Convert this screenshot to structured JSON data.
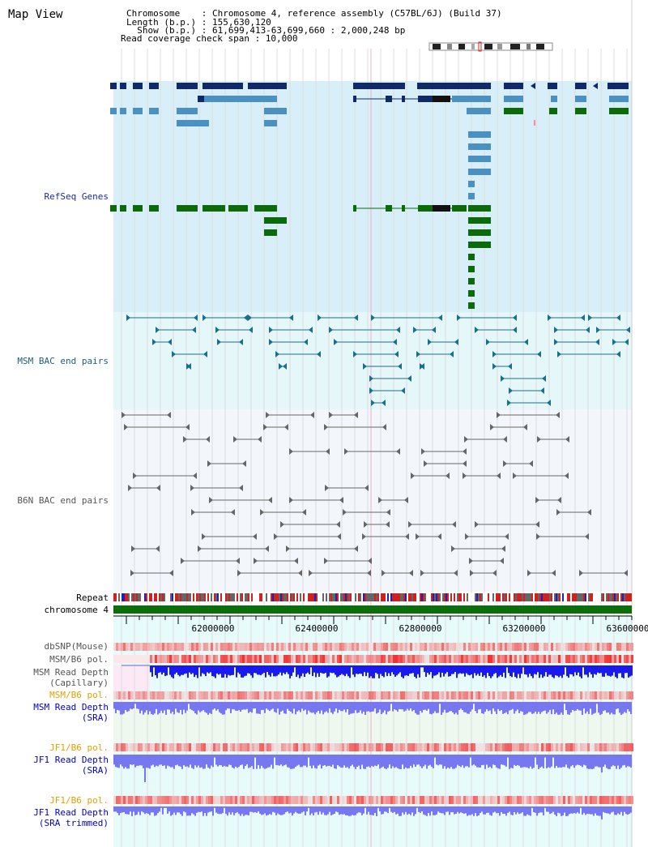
{
  "view_title": "Map View",
  "info": {
    "line1": "Chromosome    : Chromosome 4, reference assembly (C57BL/6J) (Build 37)",
    "line2": "Length (b.p.) : 155,630,120",
    "line3": "  Show (b.p.) : 61,699,413-63,699,660 : 2,000,248 bp",
    "line4": "Read coverage check span : 10,000"
  },
  "tracks": {
    "refseq": "RefSeq Genes",
    "msm_bac": "MSM BAC end pairs",
    "b6n_bac": "B6N BAC end pairs",
    "repeat": "Repeat",
    "chrom": "chromosome 4",
    "dbsnp": "dbSNP(Mouse)",
    "msm_pol1": "MSM/B6 pol.",
    "msm_depth_cap_1": "MSM Read Depth",
    "msm_depth_cap_2": "(Capillary)",
    "msm_pol2": "MSM/B6 pol.",
    "msm_depth_sra_1": "MSM Read Depth",
    "msm_depth_sra_2": "(SRA)",
    "jf1_pol1": "JF1/B6 pol.",
    "jf1_depth_sra_1": "JF1 Read Depth",
    "jf1_depth_sra_2": "(SRA)",
    "jf1_pol2": "JF1/B6 pol.",
    "jf1_depth_tr_1": "JF1 Read Depth",
    "jf1_depth_tr_2": "(SRA trimmed)"
  },
  "axis_ticks": [
    "62000000",
    "62400000",
    "62800000",
    "63200000",
    "63600000"
  ],
  "colors": {
    "refseq_bg": "#d8eef9",
    "bac_bg": "#e6f7fa",
    "b6n_bg": "#f3f6fb",
    "navy_gene": "#0f2a66",
    "blue_gene": "#4a90c0",
    "green_gene": "#0b6b0b",
    "chrom_bar": "#0a6e0a",
    "depth_blue": "#1a1aee",
    "depth_light": "#7777f0"
  }
}
